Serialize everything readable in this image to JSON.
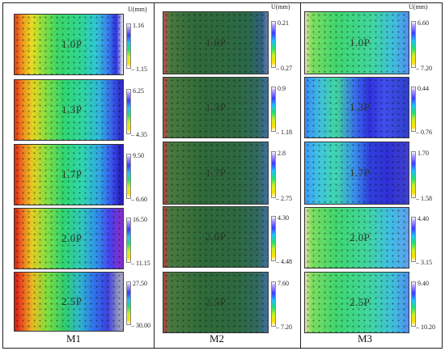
{
  "units": "U(mm)",
  "columns": [
    {
      "label": "M1",
      "panels": [
        {
          "label": "1.0P",
          "max": "1.16",
          "min": "– 1.15"
        },
        {
          "label": "1.3P",
          "max": "6.25",
          "min": "– 4.35"
        },
        {
          "label": "1.7P",
          "max": "9.50",
          "min": "– 6.60"
        },
        {
          "label": "2.0P",
          "max": "16.50",
          "min": "– 11.15"
        },
        {
          "label": "2.5P",
          "max": "27.50",
          "min": "– 30.00"
        }
      ]
    },
    {
      "label": "M2",
      "panels": [
        {
          "label": "1.0P",
          "max": "0.21",
          "min": "– 0.27"
        },
        {
          "label": "1.3P",
          "max": "0.9",
          "min": "– 1.18"
        },
        {
          "label": "1.7P",
          "max": "2.8",
          "min": "– 2.75"
        },
        {
          "label": "2.0P",
          "max": "4.30",
          "min": "– 4.48"
        },
        {
          "label": "2.5P",
          "max": "7.60",
          "min": "– 7.20"
        }
      ]
    },
    {
      "label": "M3",
      "panels": [
        {
          "label": "1.0P",
          "max": "6.60",
          "min": "– 7.20"
        },
        {
          "label": "1.3P",
          "max": "0.44",
          "min": "– 0.76"
        },
        {
          "label": "1.7P",
          "max": "1.70",
          "min": "– 1.58"
        },
        {
          "label": "2.0P",
          "max": "4.40",
          "min": "– 3.15"
        },
        {
          "label": "2.5P",
          "max": "9.40",
          "min": "– 10.20"
        }
      ]
    }
  ]
}
